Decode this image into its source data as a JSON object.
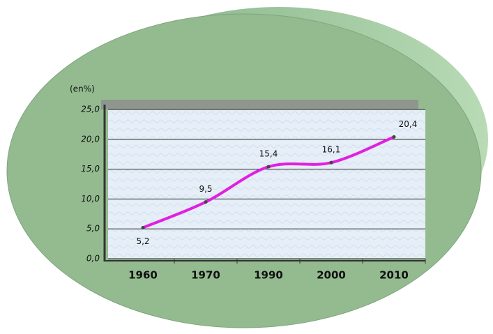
{
  "chart_data": {
    "type": "line",
    "y_label": "(en%)",
    "categories": [
      "1960",
      "1970",
      "1990",
      "2000",
      "2010"
    ],
    "values": [
      5.2,
      9.5,
      15.4,
      16.1,
      20.4
    ],
    "value_labels": [
      "5,2",
      "9,5",
      "15,4",
      "16,1",
      "20,4"
    ],
    "color": "#e020e0",
    "ylim": [
      0,
      25
    ],
    "yticks": [
      {
        "value": 0,
        "label": "0,0"
      },
      {
        "value": 5,
        "label": "5,0"
      },
      {
        "value": 10,
        "label": "10,0"
      },
      {
        "value": 15,
        "label": "15,0"
      },
      {
        "value": 20,
        "label": "20,0"
      },
      {
        "value": 25,
        "label": "25,0"
      }
    ],
    "grid": true
  }
}
